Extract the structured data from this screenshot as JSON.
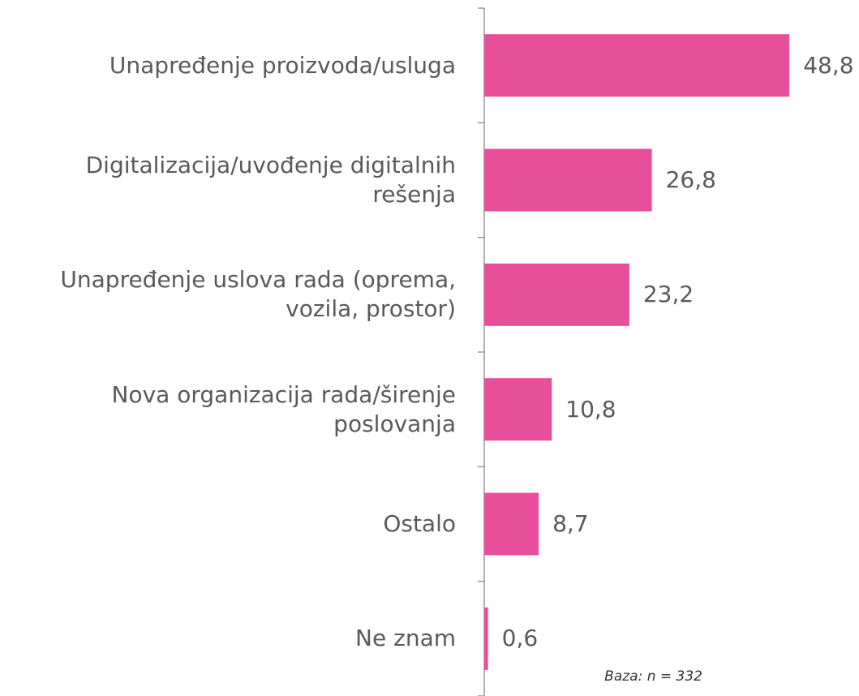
{
  "chart_data": {
    "type": "bar",
    "orientation": "horizontal",
    "categories": [
      "Unapređenje proizvoda/usluga",
      "Digitalizacija/uvođenje digitalnih rešenja",
      "Unapređenje uslova rada (oprema, vozila, prostor)",
      "Nova organizacija rada/širenje poslovanja",
      "Ostalo",
      "Ne znam"
    ],
    "values": [
      48.8,
      26.8,
      23.2,
      10.8,
      8.7,
      0.6
    ],
    "value_labels": [
      "48,8",
      "26,8",
      "23,2",
      "10,8",
      "8,7",
      "0,6"
    ],
    "color": "#e84f9b",
    "xlim": [
      0,
      55
    ],
    "footnote": "Baza: n = 332"
  }
}
